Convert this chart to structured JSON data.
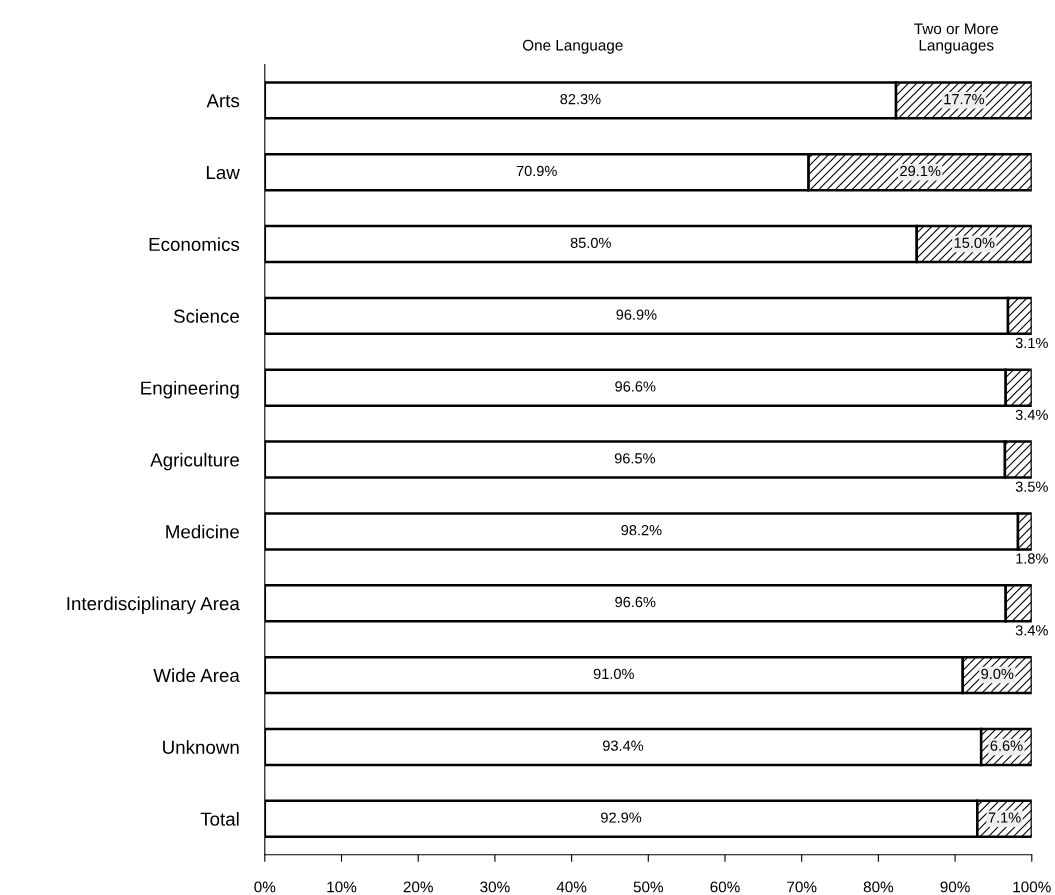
{
  "chart_data": {
    "type": "bar",
    "orientation": "horizontal",
    "stacked": true,
    "categories": [
      "Arts",
      "Law",
      "Economics",
      "Science",
      "Engineering",
      "Agriculture",
      "Medicine",
      "Interdisciplinary Area",
      "Wide Area",
      "Unknown",
      "Total"
    ],
    "series": [
      {
        "name": "One Language",
        "color": "#ffffff",
        "values": [
          82.3,
          70.9,
          85.0,
          96.9,
          96.6,
          96.5,
          98.2,
          96.6,
          91.0,
          93.4,
          92.9
        ],
        "value_labels": [
          "82.3%",
          "70.9%",
          "85.0%",
          "96.9%",
          "96.6%",
          "96.5%",
          "98.2%",
          "96.6%",
          "91.0%",
          "93.4%",
          "92.9%"
        ]
      },
      {
        "name": "Two or More Languages",
        "color": "#000000",
        "values": [
          17.7,
          29.1,
          15.0,
          3.1,
          3.4,
          3.5,
          1.8,
          3.4,
          9.0,
          6.6,
          7.1
        ],
        "value_labels": [
          "17.7%",
          "29.1%",
          "15.0%",
          "3.1%",
          "3.4%",
          "3.5%",
          "1.8%",
          "3.4%",
          "9.0%",
          "6.6%",
          "7.1%"
        ]
      }
    ],
    "xlim": [
      0,
      100
    ],
    "xticks": [
      {
        "value": 0,
        "label": "0%"
      },
      {
        "value": 10,
        "label": "10%"
      },
      {
        "value": 20,
        "label": "20%"
      },
      {
        "value": 30,
        "label": "30%"
      },
      {
        "value": 40,
        "label": "40%"
      },
      {
        "value": 50,
        "label": "50%"
      },
      {
        "value": 60,
        "label": "60%"
      },
      {
        "value": 70,
        "label": "70%"
      },
      {
        "value": 80,
        "label": "80%"
      },
      {
        "value": 90,
        "label": "90%"
      },
      {
        "value": 100,
        "label": "100%"
      }
    ],
    "grid": false,
    "legend": false
  }
}
